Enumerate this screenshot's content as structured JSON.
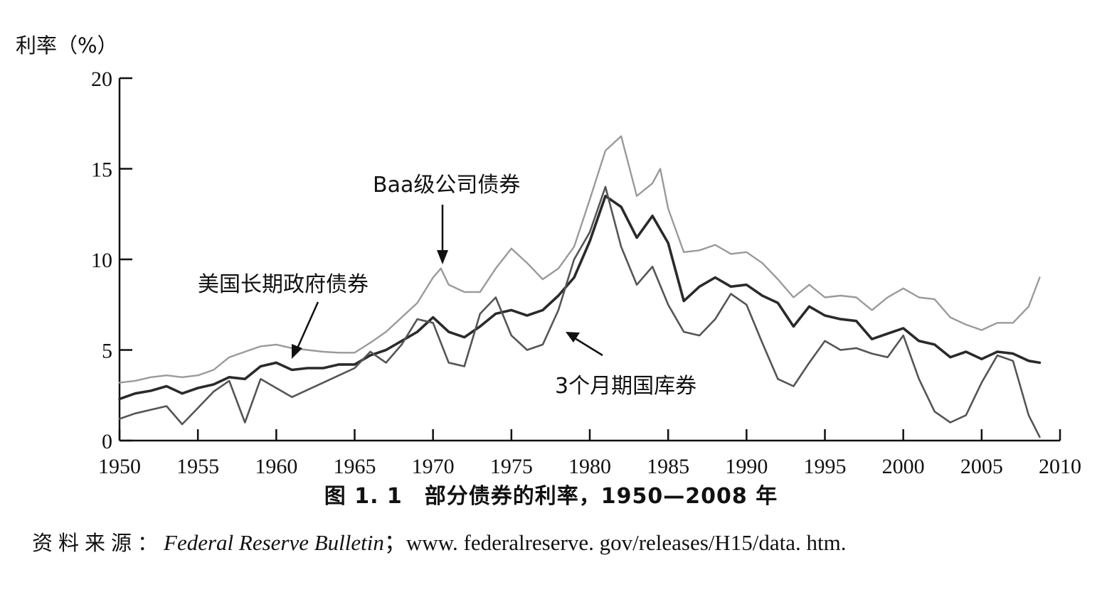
{
  "chart_data": {
    "type": "line",
    "ylabel": "利率（%）",
    "xlabel": "",
    "xlim": [
      1950,
      2010
    ],
    "ylim": [
      0,
      20
    ],
    "xticks": [
      1950,
      1955,
      1960,
      1965,
      1970,
      1975,
      1980,
      1985,
      1990,
      1995,
      2000,
      2005,
      2010
    ],
    "yticks": [
      0,
      5,
      10,
      15,
      20
    ],
    "grid": false,
    "legend": "none (series labeled by in-chart annotations with arrows)",
    "series": [
      {
        "name": "Baa级公司债券",
        "color": "#9a9a9a",
        "points": [
          [
            1950,
            3.2
          ],
          [
            1951,
            3.3
          ],
          [
            1952,
            3.5
          ],
          [
            1953,
            3.6
          ],
          [
            1954,
            3.5
          ],
          [
            1955,
            3.6
          ],
          [
            1956,
            3.9
          ],
          [
            1957,
            4.6
          ],
          [
            1958,
            4.9
          ],
          [
            1959,
            5.2
          ],
          [
            1960,
            5.3
          ],
          [
            1961,
            5.1
          ],
          [
            1962,
            5.0
          ],
          [
            1963,
            4.9
          ],
          [
            1964,
            4.85
          ],
          [
            1965,
            4.85
          ],
          [
            1966,
            5.4
          ],
          [
            1967,
            6.0
          ],
          [
            1968,
            6.8
          ],
          [
            1969,
            7.6
          ],
          [
            1970,
            9.0
          ],
          [
            1970.5,
            9.5
          ],
          [
            1971,
            8.6
          ],
          [
            1972,
            8.2
          ],
          [
            1973,
            8.2
          ],
          [
            1974,
            9.5
          ],
          [
            1975,
            10.6
          ],
          [
            1976,
            9.8
          ],
          [
            1977,
            8.9
          ],
          [
            1978,
            9.5
          ],
          [
            1979,
            10.7
          ],
          [
            1980,
            13.3
          ],
          [
            1981,
            16.0
          ],
          [
            1982,
            16.8
          ],
          [
            1983,
            13.5
          ],
          [
            1984,
            14.2
          ],
          [
            1984.5,
            15.0
          ],
          [
            1985,
            12.8
          ],
          [
            1986,
            10.4
          ],
          [
            1987,
            10.5
          ],
          [
            1988,
            10.8
          ],
          [
            1989,
            10.3
          ],
          [
            1990,
            10.4
          ],
          [
            1991,
            9.8
          ],
          [
            1992,
            8.9
          ],
          [
            1993,
            7.9
          ],
          [
            1994,
            8.6
          ],
          [
            1995,
            7.9
          ],
          [
            1996,
            8.0
          ],
          [
            1997,
            7.9
          ],
          [
            1998,
            7.2
          ],
          [
            1999,
            7.9
          ],
          [
            2000,
            8.4
          ],
          [
            2001,
            7.9
          ],
          [
            2002,
            7.8
          ],
          [
            2003,
            6.8
          ],
          [
            2004,
            6.4
          ],
          [
            2005,
            6.1
          ],
          [
            2006,
            6.5
          ],
          [
            2007,
            6.5
          ],
          [
            2008,
            7.4
          ],
          [
            2008.7,
            9.0
          ]
        ]
      },
      {
        "name": "美国长期政府债券",
        "color": "#2a2a2a",
        "points": [
          [
            1950,
            2.3
          ],
          [
            1951,
            2.6
          ],
          [
            1952,
            2.75
          ],
          [
            1953,
            3.0
          ],
          [
            1954,
            2.6
          ],
          [
            1955,
            2.9
          ],
          [
            1956,
            3.1
          ],
          [
            1957,
            3.5
          ],
          [
            1958,
            3.4
          ],
          [
            1959,
            4.1
          ],
          [
            1960,
            4.3
          ],
          [
            1961,
            3.9
          ],
          [
            1962,
            4.0
          ],
          [
            1963,
            4.0
          ],
          [
            1964,
            4.2
          ],
          [
            1965,
            4.2
          ],
          [
            1966,
            4.7
          ],
          [
            1967,
            5.0
          ],
          [
            1968,
            5.5
          ],
          [
            1969,
            6.0
          ],
          [
            1970,
            6.8
          ],
          [
            1971,
            6.0
          ],
          [
            1972,
            5.7
          ],
          [
            1973,
            6.3
          ],
          [
            1974,
            7.0
          ],
          [
            1975,
            7.2
          ],
          [
            1976,
            6.9
          ],
          [
            1977,
            7.2
          ],
          [
            1978,
            8.0
          ],
          [
            1979,
            9.0
          ],
          [
            1980,
            11.0
          ],
          [
            1981,
            13.5
          ],
          [
            1982,
            12.9
          ],
          [
            1983,
            11.2
          ],
          [
            1984,
            12.4
          ],
          [
            1985,
            10.9
          ],
          [
            1986,
            7.7
          ],
          [
            1987,
            8.5
          ],
          [
            1988,
            9.0
          ],
          [
            1989,
            8.5
          ],
          [
            1990,
            8.6
          ],
          [
            1991,
            8.0
          ],
          [
            1992,
            7.6
          ],
          [
            1993,
            6.3
          ],
          [
            1994,
            7.4
          ],
          [
            1995,
            6.9
          ],
          [
            1996,
            6.7
          ],
          [
            1997,
            6.6
          ],
          [
            1998,
            5.6
          ],
          [
            1999,
            5.9
          ],
          [
            2000,
            6.2
          ],
          [
            2001,
            5.5
          ],
          [
            2002,
            5.3
          ],
          [
            2003,
            4.6
          ],
          [
            2004,
            4.9
          ],
          [
            2005,
            4.5
          ],
          [
            2006,
            4.9
          ],
          [
            2007,
            4.8
          ],
          [
            2008,
            4.4
          ],
          [
            2008.7,
            4.3
          ]
        ]
      },
      {
        "name": "3个月期国库券",
        "color": "#555555",
        "points": [
          [
            1950,
            1.2
          ],
          [
            1951,
            1.5
          ],
          [
            1952,
            1.7
          ],
          [
            1953,
            1.9
          ],
          [
            1954,
            0.9
          ],
          [
            1955,
            1.8
          ],
          [
            1956,
            2.7
          ],
          [
            1957,
            3.3
          ],
          [
            1958,
            1.0
          ],
          [
            1959,
            3.4
          ],
          [
            1960,
            2.9
          ],
          [
            1961,
            2.4
          ],
          [
            1962,
            2.8
          ],
          [
            1963,
            3.2
          ],
          [
            1964,
            3.6
          ],
          [
            1965,
            4.0
          ],
          [
            1966,
            4.9
          ],
          [
            1967,
            4.3
          ],
          [
            1968,
            5.3
          ],
          [
            1969,
            6.7
          ],
          [
            1970,
            6.5
          ],
          [
            1971,
            4.3
          ],
          [
            1972,
            4.1
          ],
          [
            1973,
            7.0
          ],
          [
            1974,
            7.9
          ],
          [
            1975,
            5.8
          ],
          [
            1976,
            5.0
          ],
          [
            1977,
            5.3
          ],
          [
            1978,
            7.2
          ],
          [
            1979,
            10.0
          ],
          [
            1980,
            11.5
          ],
          [
            1981,
            14.0
          ],
          [
            1982,
            10.7
          ],
          [
            1983,
            8.6
          ],
          [
            1984,
            9.6
          ],
          [
            1985,
            7.5
          ],
          [
            1986,
            6.0
          ],
          [
            1987,
            5.8
          ],
          [
            1988,
            6.7
          ],
          [
            1989,
            8.1
          ],
          [
            1990,
            7.5
          ],
          [
            1991,
            5.4
          ],
          [
            1992,
            3.4
          ],
          [
            1993,
            3.0
          ],
          [
            1994,
            4.3
          ],
          [
            1995,
            5.5
          ],
          [
            1996,
            5.0
          ],
          [
            1997,
            5.1
          ],
          [
            1998,
            4.8
          ],
          [
            1999,
            4.6
          ],
          [
            2000,
            5.8
          ],
          [
            2001,
            3.4
          ],
          [
            2002,
            1.6
          ],
          [
            2003,
            1.0
          ],
          [
            2004,
            1.4
          ],
          [
            2005,
            3.2
          ],
          [
            2006,
            4.7
          ],
          [
            2007,
            4.4
          ],
          [
            2008,
            1.4
          ],
          [
            2008.7,
            0.2
          ]
        ]
      }
    ],
    "annotations": [
      "Baa级公司债券",
      "美国长期政府债券",
      "3个月期国库券"
    ]
  },
  "caption": "图 1. 1　部分债券的利率，1950—2008 年",
  "source": {
    "label": "资料来源：",
    "publication": "Federal Reserve Bulletin",
    "rest": "；www. federalreserve. gov/releases/H15/data. htm."
  }
}
